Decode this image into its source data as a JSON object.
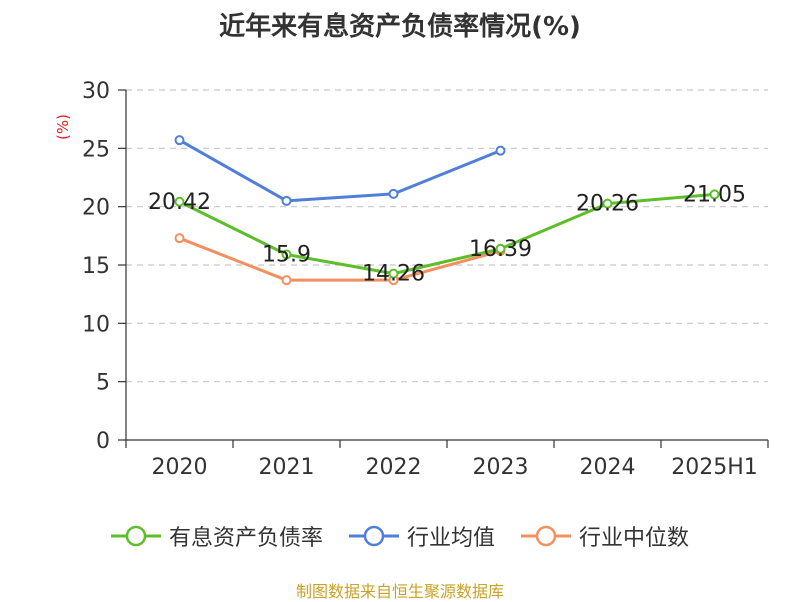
{
  "chart_data": {
    "type": "line",
    "title": "近年来有息资产负债率情况(%)",
    "ylabel": "(%)",
    "categories": [
      "2020",
      "2021",
      "2022",
      "2023",
      "2024",
      "2025H1"
    ],
    "ylim": [
      0,
      30
    ],
    "yticks": [
      "0",
      "5",
      "10",
      "15",
      "20",
      "25",
      "30"
    ],
    "grid": true,
    "legend_position": "bottom",
    "series": [
      {
        "name": "有息资产负债率",
        "color": "#5dbe2a",
        "values": [
          20.42,
          15.9,
          14.26,
          16.39,
          20.26,
          21.05
        ],
        "labels": [
          "20.42",
          "15.9",
          "14.26",
          "16.39",
          "20.26",
          "21.05"
        ]
      },
      {
        "name": "行业均值",
        "color": "#4f7fd8",
        "values": [
          25.7,
          20.5,
          21.1,
          24.8,
          null,
          null
        ]
      },
      {
        "name": "行业中位数",
        "color": "#f39060",
        "values": [
          17.3,
          13.7,
          13.7,
          16.2,
          null,
          null
        ]
      }
    ]
  },
  "source": "制图数据来自恒生聚源数据库"
}
